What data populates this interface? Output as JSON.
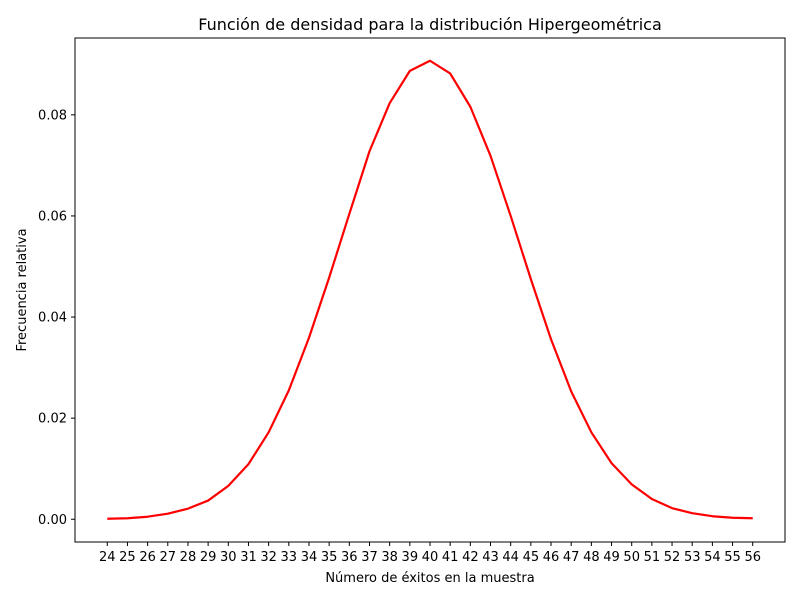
{
  "chart_data": {
    "type": "line",
    "title": "Función de densidad para la distribución Hipergeométrica",
    "xlabel": "Número de éxitos en la muestra",
    "ylabel": "Frecuencia relativa",
    "x": [
      24,
      25,
      26,
      27,
      28,
      29,
      30,
      31,
      32,
      33,
      34,
      35,
      36,
      37,
      38,
      39,
      40,
      41,
      42,
      43,
      44,
      45,
      46,
      47,
      48,
      49,
      50,
      51,
      52,
      53,
      54,
      55,
      56
    ],
    "series": [
      {
        "color": "#ff0000",
        "values": [
          0.0001,
          0.0002,
          0.0005,
          0.0011,
          0.0021,
          0.0037,
          0.0066,
          0.0109,
          0.0172,
          0.0255,
          0.0359,
          0.0478,
          0.0604,
          0.0728,
          0.0823,
          0.0887,
          0.0907,
          0.0882,
          0.0816,
          0.0719,
          0.06,
          0.0475,
          0.0356,
          0.0253,
          0.0172,
          0.0111,
          0.0069,
          0.004,
          0.0022,
          0.0012,
          0.0006,
          0.0003,
          0.0002
        ]
      }
    ],
    "xlim": [
      22.4,
      57.6
    ],
    "ylim": [
      -0.0045,
      0.0952
    ],
    "yticks": [
      0.0,
      0.02,
      0.04,
      0.06,
      0.08
    ],
    "ytick_labels": [
      "0.00",
      "0.02",
      "0.04",
      "0.06",
      "0.08"
    ],
    "grid": false,
    "legend": false
  }
}
